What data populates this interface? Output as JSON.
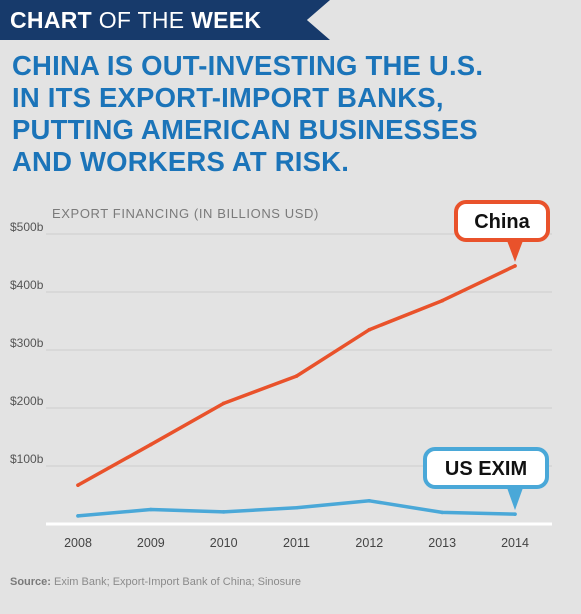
{
  "banner": {
    "part1": "CHART",
    "part2": " OF THE ",
    "part3": "WEEK"
  },
  "headline": [
    "CHINA IS OUT-INVESTING THE U.S.",
    "IN ITS EXPORT-IMPORT BANKS,",
    "PUTTING AMERICAN BUSINESSES",
    "AND WORKERS AT RISK."
  ],
  "source": {
    "label": "Source:",
    "text": " Exim Bank; Export-Import Bank of China; Sinosure"
  },
  "colors": {
    "banner": "#173a6b",
    "headline": "#1b74b9",
    "china": "#e9522b",
    "us": "#4aa8d8",
    "background": "#e3e3e3"
  },
  "chart_data": {
    "type": "line",
    "title": "",
    "ylabel": "EXPORT FINANCING (IN BILLIONS USD)",
    "xlabel": "",
    "x": [
      "2008",
      "2009",
      "2010",
      "2011",
      "2012",
      "2013",
      "2014"
    ],
    "ylim": [
      0,
      500
    ],
    "yticks": [
      100,
      200,
      300,
      400,
      500
    ],
    "ytick_labels": [
      "$100b",
      "$200b",
      "$300b",
      "$400b",
      "$500b"
    ],
    "grid": true,
    "series": [
      {
        "name": "China",
        "values": [
          67,
          137,
          208,
          255,
          335,
          385,
          445
        ]
      },
      {
        "name": "US EXIM",
        "values": [
          14,
          25,
          21,
          28,
          40,
          20,
          17
        ]
      }
    ]
  }
}
